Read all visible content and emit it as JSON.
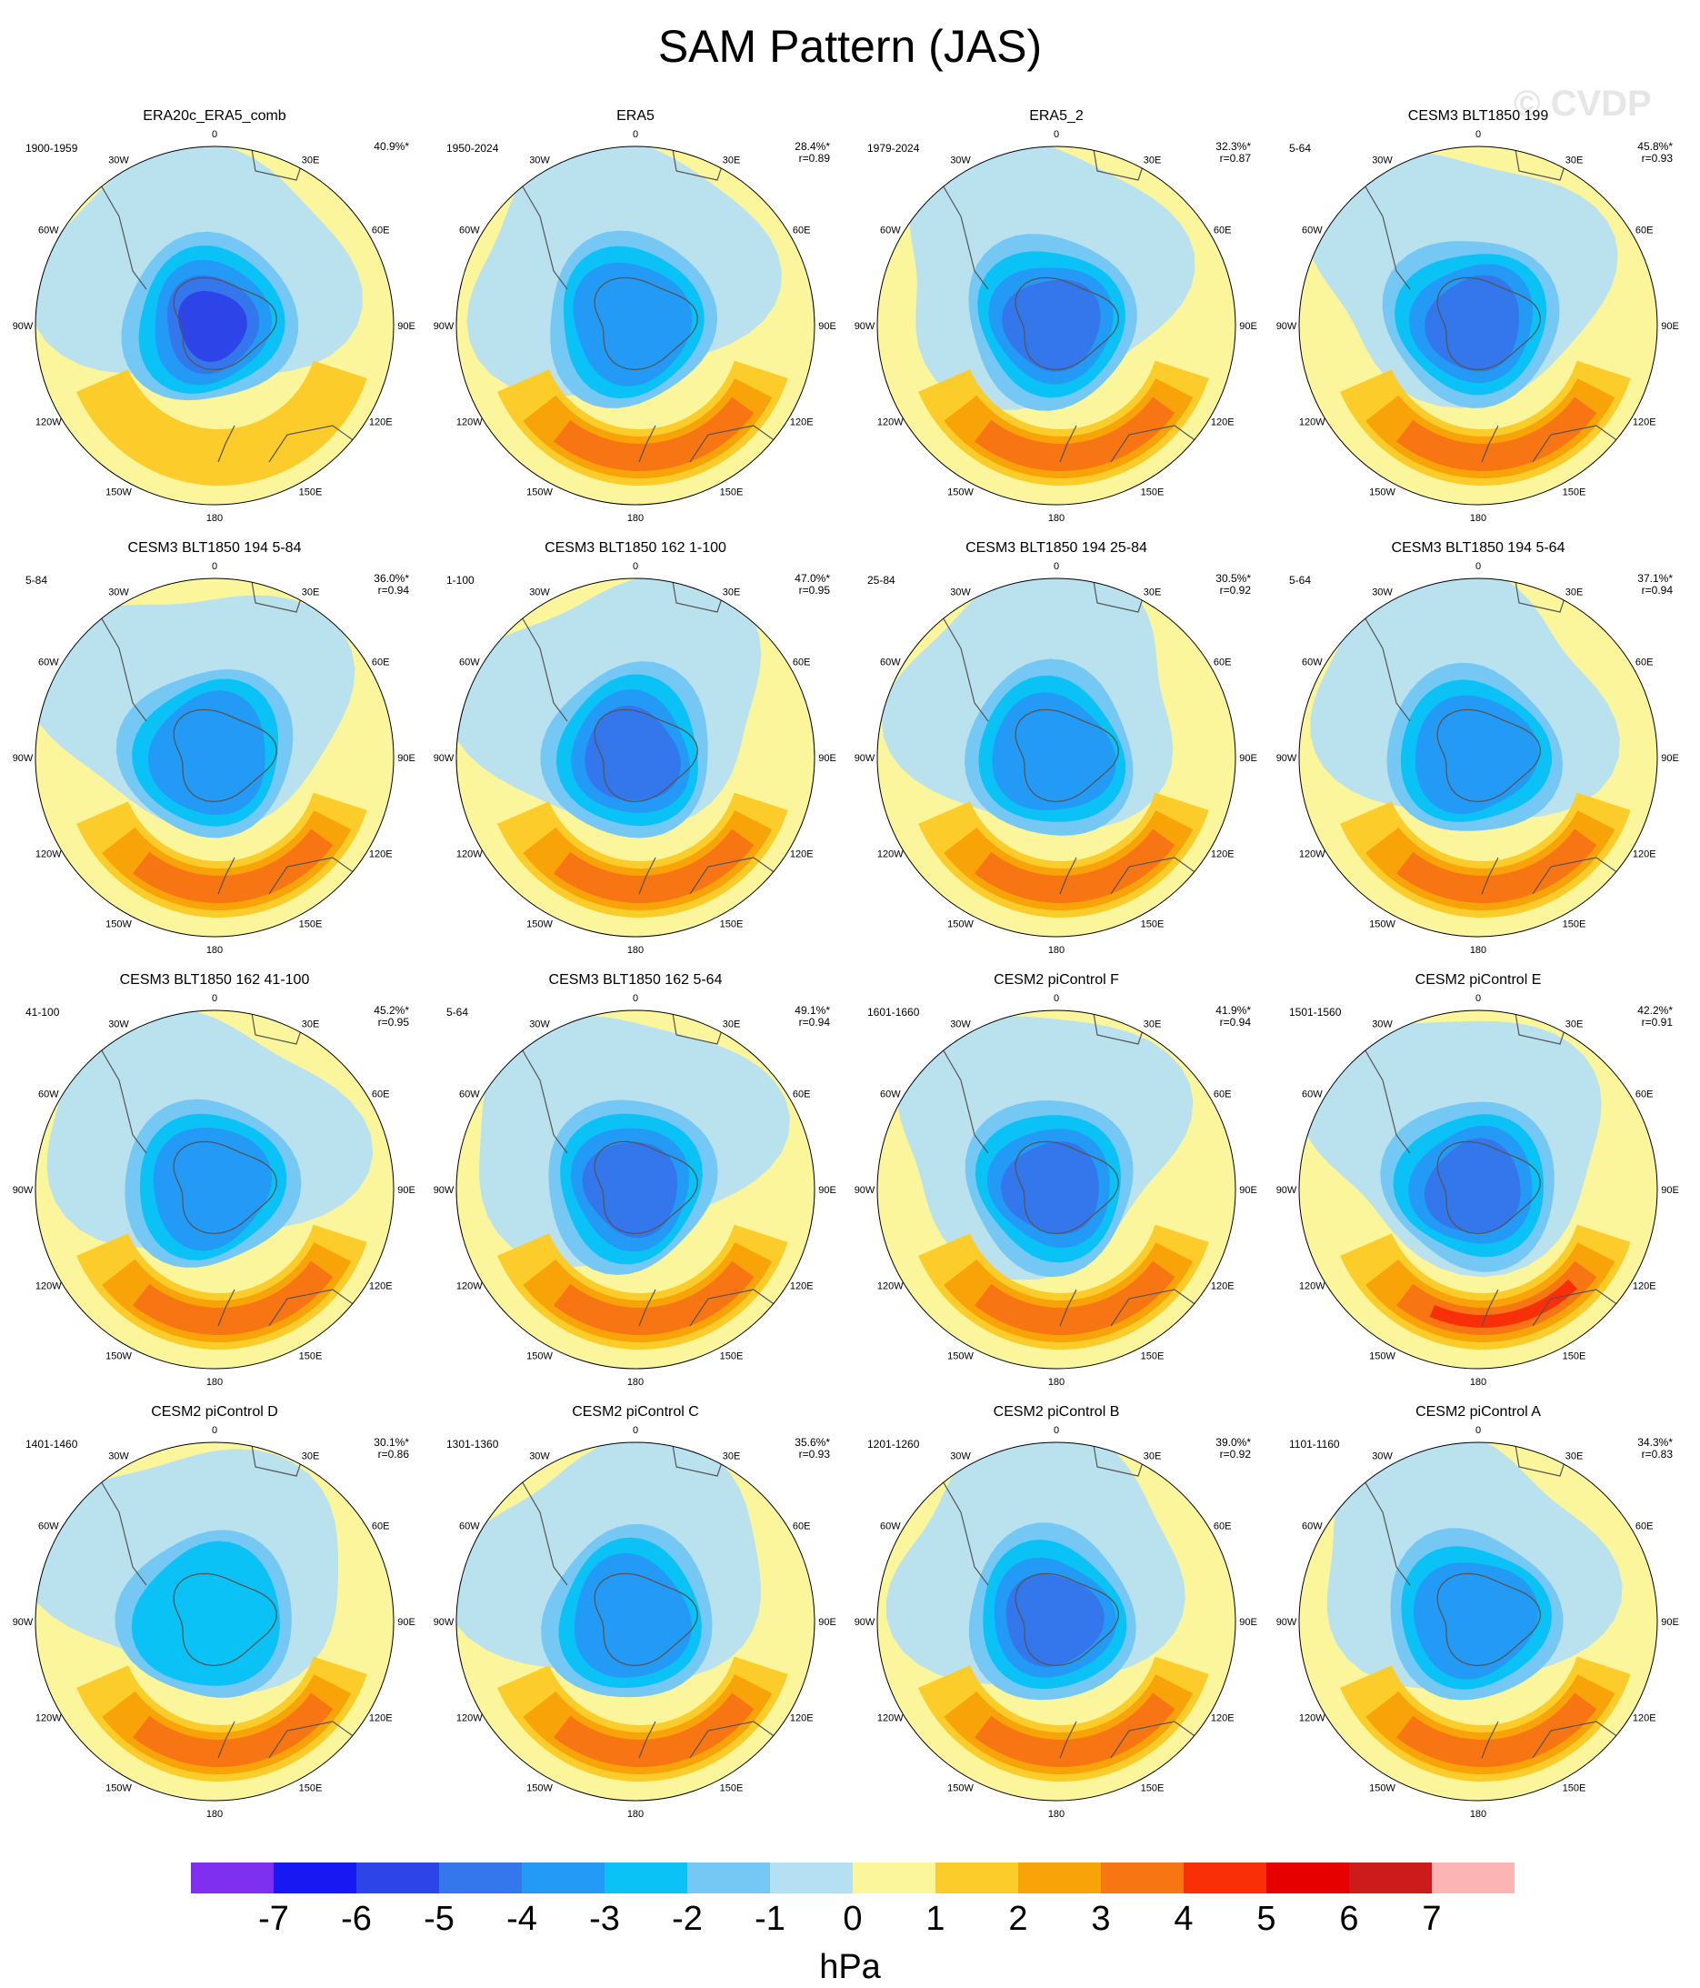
{
  "title": "SAM Pattern (JAS)",
  "watermark": "© CVDP",
  "colors": {
    "levels": [
      "#7f2fef",
      "#1818f2",
      "#2d45e8",
      "#3476ec",
      "#229af6",
      "#0ac2f5",
      "#75c8f3",
      "#b5dff2",
      "#fbf69c",
      "#fccc2a",
      "#f8a308",
      "#f87513",
      "#f92f07",
      "#e60000",
      "#cd1a1a",
      "#fdb4b4"
    ],
    "land_outline": "#555555"
  },
  "chart_data": {
    "type": "polar-contour-map",
    "units": "hPa",
    "colorbar_ticks": [
      "-7",
      "-6",
      "-5",
      "-4",
      "-3",
      "-2",
      "-1",
      "0",
      "1",
      "2",
      "3",
      "4",
      "5",
      "6",
      "7"
    ],
    "panels": [
      {
        "title": "ERA20c_ERA5_comb",
        "period": "1900-1959",
        "pct": "40.9%*",
        "r": "",
        "low": -6,
        "high": 1
      },
      {
        "title": "ERA5",
        "period": "1950-2024",
        "pct": "28.4%*",
        "r": "r=0.89",
        "low": -4,
        "high": 3
      },
      {
        "title": "ERA5_2",
        "period": "1979-2024",
        "pct": "32.3%*",
        "r": "r=0.87",
        "low": -5,
        "high": 3
      },
      {
        "title": "CESM3 BLT1850 199",
        "period": "5-64",
        "pct": "45.8%*",
        "r": "r=0.93",
        "low": -5,
        "high": 3
      },
      {
        "title": "CESM3 BLT1850 194 5-84",
        "period": "5-84",
        "pct": "36.0%*",
        "r": "r=0.94",
        "low": -4,
        "high": 3
      },
      {
        "title": "CESM3 BLT1850 162 1-100",
        "period": "1-100",
        "pct": "47.0%*",
        "r": "r=0.95",
        "low": -5,
        "high": 3
      },
      {
        "title": "CESM3 BLT1850 194 25-84",
        "period": "25-84",
        "pct": "30.5%*",
        "r": "r=0.92",
        "low": -4,
        "high": 3
      },
      {
        "title": "CESM3 BLT1850 194 5-64",
        "period": "5-64",
        "pct": "37.1%*",
        "r": "r=0.94",
        "low": -4,
        "high": 3
      },
      {
        "title": "CESM3 BLT1850 162 41-100",
        "period": "41-100",
        "pct": "45.2%*",
        "r": "r=0.95",
        "low": -4,
        "high": 3
      },
      {
        "title": "CESM3 BLT1850 162 5-64",
        "period": "5-64",
        "pct": "49.1%*",
        "r": "r=0.94",
        "low": -5,
        "high": 3
      },
      {
        "title": "CESM2 piControl F",
        "period": "1601-1660",
        "pct": "41.9%*",
        "r": "r=0.94",
        "low": -5,
        "high": 3
      },
      {
        "title": "CESM2 piControl E",
        "period": "1501-1560",
        "pct": "42.2%*",
        "r": "r=0.91",
        "low": -5,
        "high": 4
      },
      {
        "title": "CESM2 piControl D",
        "period": "1401-1460",
        "pct": "30.1%*",
        "r": "r=0.86",
        "low": -3,
        "high": 3
      },
      {
        "title": "CESM2 piControl C",
        "period": "1301-1360",
        "pct": "35.6%*",
        "r": "r=0.93",
        "low": -4,
        "high": 3
      },
      {
        "title": "CESM2 piControl B",
        "period": "1201-1260",
        "pct": "39.0%*",
        "r": "r=0.92",
        "low": -5,
        "high": 3
      },
      {
        "title": "CESM2 piControl A",
        "period": "1101-1160",
        "pct": "34.3%*",
        "r": "r=0.83",
        "low": -4,
        "high": 3
      }
    ],
    "longitude_labels": [
      "0",
      "30E",
      "60E",
      "90E",
      "120E",
      "150E",
      "180",
      "150W",
      "120W",
      "90W",
      "60W",
      "30W"
    ]
  }
}
